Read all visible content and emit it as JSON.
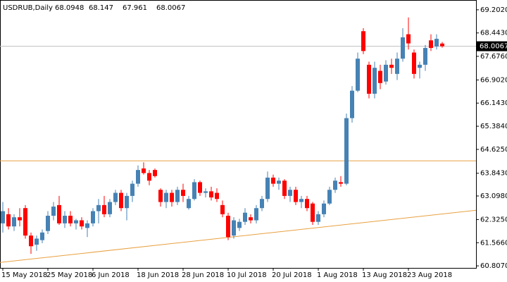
{
  "chart_data": {
    "type": "candlestick",
    "title": "USDRUB,Daily",
    "categories": [
      "15 May 2018",
      null,
      null,
      null,
      null,
      null,
      null,
      null,
      "25 May 2018",
      null,
      null,
      null,
      null,
      null,
      null,
      null,
      "6 Jun 2018",
      null,
      null,
      null,
      null,
      null,
      null,
      null,
      "18 Jun 2018",
      null,
      null,
      null,
      null,
      null,
      null,
      null,
      "28 Jun 2018",
      null,
      null,
      null,
      null,
      null,
      null,
      null,
      "10 Jul 2018",
      null,
      null,
      null,
      null,
      null,
      null,
      null,
      "20 Jul 2018",
      null,
      null,
      null,
      null,
      null,
      null,
      null,
      "1 Aug 2018",
      null,
      null,
      null,
      null,
      null,
      null,
      null,
      "13 Aug 2018",
      null,
      null,
      null,
      null,
      null,
      null,
      null,
      "23 Aug 2018",
      null,
      null,
      null,
      null,
      null,
      null
    ],
    "open": [
      62.2,
      62.5,
      62.1,
      62.4,
      62.7,
      61.8,
      61.5,
      61.65,
      61.95,
      62.45,
      62.8,
      62.2,
      62.45,
      62.2,
      62.3,
      62.05,
      62.2,
      62.6,
      62.8,
      62.5,
      62.9,
      63.2,
      62.7,
      63.1,
      63.5,
      64.0,
      63.85,
      63.95,
      63.3,
      62.9,
      63.2,
      62.9,
      63.3,
      62.7,
      63.0,
      63.55,
      63.2,
      63.25,
      63.2,
      62.8,
      62.45,
      61.8,
      62.05,
      62.25,
      62.4,
      62.3,
      62.7,
      63.0,
      63.7,
      63.5,
      63.6,
      63.1,
      63.3,
      62.9,
      63.0,
      62.85,
      62.25,
      62.5,
      62.85,
      63.3,
      63.55,
      63.5,
      65.65,
      66.55,
      68.5,
      67.4,
      66.45,
      67.2,
      66.85,
      67.4,
      67.1,
      67.6,
      68.4,
      67.8,
      67.3,
      67.4,
      68.2,
      68.0,
      68.0948
    ],
    "high": [
      62.9,
      62.7,
      62.5,
      62.7,
      62.8,
      61.9,
      61.8,
      62.0,
      62.6,
      62.9,
      63.1,
      62.6,
      62.6,
      62.35,
      62.4,
      62.3,
      62.7,
      63.0,
      63.1,
      63.0,
      63.3,
      63.3,
      63.2,
      63.6,
      64.1,
      64.2,
      63.95,
      64.0,
      63.35,
      63.3,
      63.3,
      63.4,
      63.5,
      63.1,
      63.65,
      63.6,
      63.35,
      63.4,
      63.35,
      62.95,
      62.55,
      62.4,
      62.35,
      62.7,
      62.5,
      62.8,
      63.1,
      63.9,
      63.8,
      63.7,
      63.65,
      63.4,
      63.4,
      63.1,
      63.1,
      62.9,
      62.6,
      62.95,
      63.4,
      63.7,
      63.75,
      65.8,
      66.7,
      67.8,
      68.6,
      67.5,
      67.5,
      67.4,
      67.55,
      67.6,
      67.8,
      68.6,
      68.95,
      67.9,
      67.5,
      68.05,
      68.4,
      68.4,
      68.147
    ],
    "low": [
      61.9,
      62.0,
      61.95,
      62.1,
      61.7,
      61.2,
      61.3,
      61.55,
      61.85,
      62.3,
      62.15,
      62.05,
      62.1,
      62.0,
      62.0,
      61.75,
      62.1,
      62.2,
      62.4,
      62.4,
      62.8,
      62.6,
      62.3,
      62.9,
      63.4,
      63.8,
      63.45,
      63.7,
      62.75,
      62.7,
      62.75,
      62.8,
      62.9,
      62.65,
      62.95,
      63.1,
      63.05,
      62.95,
      62.9,
      62.4,
      61.65,
      61.7,
      61.95,
      62.15,
      62.2,
      62.2,
      62.6,
      62.9,
      63.4,
      63.3,
      63.0,
      62.9,
      62.8,
      62.7,
      62.6,
      62.15,
      62.15,
      62.4,
      62.8,
      63.2,
      63.4,
      63.45,
      65.5,
      66.5,
      67.75,
      66.3,
      66.3,
      66.6,
      66.75,
      67.1,
      66.9,
      67.5,
      67.9,
      66.95,
      66.95,
      67.2,
      67.85,
      67.9,
      67.961
    ],
    "close": [
      62.6,
      62.1,
      62.4,
      62.3,
      61.8,
      61.45,
      61.7,
      61.9,
      62.45,
      62.75,
      62.2,
      62.45,
      62.2,
      62.3,
      62.1,
      62.2,
      62.6,
      62.8,
      62.5,
      62.9,
      63.2,
      62.7,
      63.1,
      63.5,
      63.95,
      63.85,
      63.6,
      63.75,
      62.9,
      63.2,
      62.9,
      63.3,
      63.1,
      63.0,
      63.55,
      63.2,
      63.25,
      63.05,
      63.0,
      62.5,
      61.75,
      62.3,
      62.25,
      62.55,
      62.3,
      62.7,
      63.0,
      63.7,
      63.5,
      63.6,
      63.1,
      63.3,
      62.9,
      63.0,
      62.7,
      62.25,
      62.5,
      62.85,
      63.3,
      63.6,
      63.5,
      65.65,
      66.55,
      67.6,
      67.85,
      66.45,
      67.3,
      66.8,
      67.4,
      67.3,
      67.6,
      68.3,
      68.1,
      67.1,
      67.4,
      67.95,
      67.95,
      68.25,
      68.0067
    ],
    "up_color": "#4682b4",
    "down_color": "#ff0000",
    "ylim": [
      60.74,
      69.5
    ],
    "yticks": [
      {
        "value": 69.202,
        "label": "69.2020"
      },
      {
        "value": 68.443,
        "label": "68.4430"
      },
      {
        "value": 67.676,
        "label": "67.6760"
      },
      {
        "value": 66.902,
        "label": "66.9020"
      },
      {
        "value": 66.143,
        "label": "66.1430"
      },
      {
        "value": 65.384,
        "label": "65.3840"
      },
      {
        "value": 64.625,
        "label": "64.6250"
      },
      {
        "value": 63.843,
        "label": "63.8430"
      },
      {
        "value": 63.098,
        "label": "63.0980"
      },
      {
        "value": 62.325,
        "label": "62.3250"
      },
      {
        "value": 61.566,
        "label": "61.5660"
      },
      {
        "value": 60.807,
        "label": "60.8070"
      }
    ],
    "hline": {
      "value": 64.25,
      "color": "#e8a040"
    },
    "trendline": {
      "values": [
        60.92,
        62.63
      ],
      "color": "#e8a040"
    },
    "bid_line_color": "#c0c0c0",
    "grid": false
  }
}
